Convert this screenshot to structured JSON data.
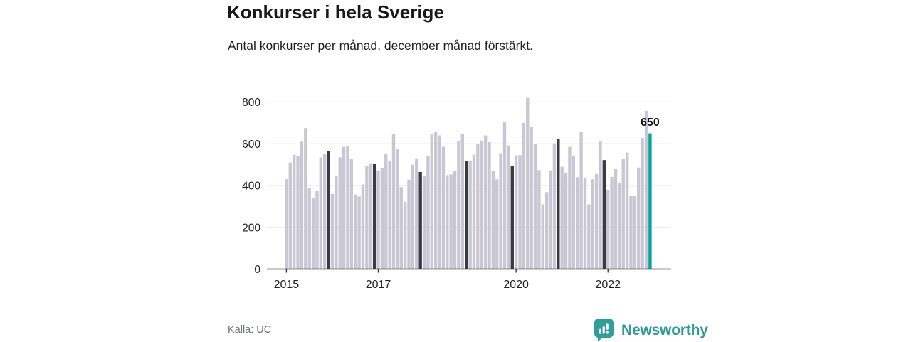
{
  "header": {
    "title": "Konkurser i hela Sverige",
    "subtitle": "Antal konkurser per månad, december månad förstärkt."
  },
  "footer": {
    "source": "Källa: UC",
    "brand": "Newsworthy",
    "brand_icon": "chart-bars-speech-bubble-icon"
  },
  "chart_data": {
    "type": "bar",
    "title": "Konkurser i hela Sverige",
    "subtitle": "Antal konkurser per månad, december månad förstärkt.",
    "frequency": "monthly",
    "start_year": 2015,
    "start_month": 1,
    "end_year": 2022,
    "end_month": 12,
    "values": [
      430,
      510,
      548,
      540,
      610,
      675,
      388,
      340,
      375,
      535,
      550,
      565,
      360,
      445,
      535,
      585,
      590,
      527,
      357,
      348,
      405,
      495,
      507,
      505,
      470,
      485,
      552,
      516,
      645,
      576,
      392,
      322,
      428,
      500,
      530,
      465,
      448,
      540,
      648,
      655,
      640,
      585,
      450,
      453,
      468,
      614,
      645,
      517,
      520,
      548,
      598,
      615,
      640,
      608,
      470,
      430,
      555,
      705,
      592,
      492,
      545,
      546,
      700,
      820,
      680,
      598,
      474,
      310,
      368,
      470,
      602,
      625,
      490,
      460,
      585,
      540,
      440,
      655,
      438,
      310,
      430,
      455,
      612,
      522,
      380,
      441,
      480,
      414,
      526,
      558,
      350,
      352,
      486,
      628,
      758,
      650
    ],
    "december_emphasis": true,
    "latest": {
      "label": "650",
      "month": "2022-12",
      "value": 650,
      "month_index": 95
    },
    "y_ticks": [
      0,
      200,
      400,
      600,
      800
    ],
    "ylim": [
      0,
      860
    ],
    "x_ticks": [
      {
        "label": "2015",
        "month_index": 0
      },
      {
        "label": "2017",
        "month_index": 24
      },
      {
        "label": "2020",
        "month_index": 60
      },
      {
        "label": "2022",
        "month_index": 84
      }
    ],
    "grid": "horizontal",
    "legend": null,
    "colors": {
      "bar": "#c9c7d4",
      "december": "#3a3a46",
      "latest": "#00a49a",
      "gridline": "#e7e7e9",
      "axis": "#2b2b2b",
      "tick_label": "#222222",
      "annotation": "#111111"
    }
  },
  "brand_colors": {
    "logo_teal": "#2f9e97",
    "text_teal": "#2b9b93"
  }
}
